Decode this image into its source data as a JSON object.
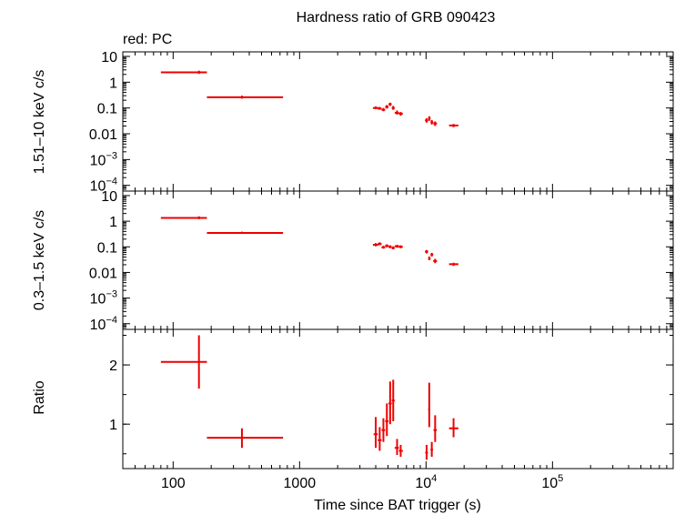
{
  "chart_data": {
    "type": "scatter",
    "title": "Hardness ratio of GRB 090423",
    "subtitle": "red: PC",
    "xlabel": "Time since BAT trigger (s)",
    "xscale": "log",
    "xlim": [
      40,
      900000
    ],
    "x_ticks": [
      {
        "value": 100,
        "label": "100"
      },
      {
        "value": 1000,
        "label": "1000"
      },
      {
        "value": 10000,
        "label": "10",
        "sup": "4"
      },
      {
        "value": 100000,
        "label": "10",
        "sup": "5"
      }
    ],
    "series_color": "#ee0000",
    "panels": [
      {
        "name": "hard-band",
        "ylabel": "1.51–10 keV c/s",
        "yscale": "log",
        "ylim": [
          6e-05,
          15
        ],
        "y_ticks": [
          {
            "value": 10,
            "label": "10"
          },
          {
            "value": 1,
            "label": "1"
          },
          {
            "value": 0.1,
            "label": "0.1"
          },
          {
            "value": 0.01,
            "label": "0.01"
          },
          {
            "value": 0.001,
            "label": "10",
            "sup": "−3"
          },
          {
            "value": 0.0001,
            "label": "10",
            "sup": "−4"
          }
        ],
        "points": [
          {
            "x": 160,
            "xlo": 80,
            "xhi": 185,
            "y": 2.4,
            "ylo": 2.1,
            "yhi": 2.8
          },
          {
            "x": 350,
            "xlo": 185,
            "xhi": 740,
            "y": 0.26,
            "ylo": 0.23,
            "yhi": 0.3
          },
          {
            "x": 4000,
            "xlo": 3800,
            "xhi": 4200,
            "y": 0.1,
            "ylo": 0.09,
            "yhi": 0.115
          },
          {
            "x": 4300,
            "xlo": 4150,
            "xhi": 4450,
            "y": 0.095,
            "ylo": 0.085,
            "yhi": 0.11
          },
          {
            "x": 4600,
            "xlo": 4450,
            "xhi": 4750,
            "y": 0.085,
            "ylo": 0.075,
            "yhi": 0.1
          },
          {
            "x": 4900,
            "xlo": 4750,
            "xhi": 5050,
            "y": 0.11,
            "ylo": 0.095,
            "yhi": 0.13
          },
          {
            "x": 5200,
            "xlo": 5050,
            "xhi": 5350,
            "y": 0.14,
            "ylo": 0.12,
            "yhi": 0.16
          },
          {
            "x": 5500,
            "xlo": 5350,
            "xhi": 5650,
            "y": 0.1,
            "ylo": 0.085,
            "yhi": 0.12
          },
          {
            "x": 5900,
            "xlo": 5650,
            "xhi": 6100,
            "y": 0.065,
            "ylo": 0.055,
            "yhi": 0.08
          },
          {
            "x": 6300,
            "xlo": 6100,
            "xhi": 6550,
            "y": 0.06,
            "ylo": 0.05,
            "yhi": 0.07
          },
          {
            "x": 10100,
            "xlo": 9800,
            "xhi": 10400,
            "y": 0.033,
            "ylo": 0.027,
            "yhi": 0.04
          },
          {
            "x": 10600,
            "xlo": 10400,
            "xhi": 10850,
            "y": 0.04,
            "ylo": 0.032,
            "yhi": 0.048
          },
          {
            "x": 11100,
            "xlo": 10850,
            "xhi": 11400,
            "y": 0.028,
            "ylo": 0.023,
            "yhi": 0.034
          },
          {
            "x": 11800,
            "xlo": 11400,
            "xhi": 12200,
            "y": 0.025,
            "ylo": 0.02,
            "yhi": 0.03
          },
          {
            "x": 16500,
            "xlo": 15200,
            "xhi": 18000,
            "y": 0.021,
            "ylo": 0.018,
            "yhi": 0.024
          }
        ]
      },
      {
        "name": "soft-band",
        "ylabel": "0.3–1.5 keV c/s",
        "yscale": "log",
        "ylim": [
          6e-05,
          15
        ],
        "y_ticks": [
          {
            "value": 10,
            "label": "10"
          },
          {
            "value": 1,
            "label": "1"
          },
          {
            "value": 0.1,
            "label": "0.1"
          },
          {
            "value": 0.01,
            "label": "0.01"
          },
          {
            "value": 0.001,
            "label": "10",
            "sup": "−3"
          },
          {
            "value": 0.0001,
            "label": "10",
            "sup": "−4"
          }
        ],
        "points": [
          {
            "x": 160,
            "xlo": 80,
            "xhi": 185,
            "y": 1.35,
            "ylo": 1.2,
            "yhi": 1.55
          },
          {
            "x": 350,
            "xlo": 185,
            "xhi": 740,
            "y": 0.35,
            "ylo": 0.32,
            "yhi": 0.39
          },
          {
            "x": 4000,
            "xlo": 3800,
            "xhi": 4200,
            "y": 0.12,
            "ylo": 0.105,
            "yhi": 0.14
          },
          {
            "x": 4300,
            "xlo": 4150,
            "xhi": 4450,
            "y": 0.13,
            "ylo": 0.115,
            "yhi": 0.15
          },
          {
            "x": 4600,
            "xlo": 4450,
            "xhi": 4750,
            "y": 0.095,
            "ylo": 0.085,
            "yhi": 0.11
          },
          {
            "x": 4900,
            "xlo": 4750,
            "xhi": 5050,
            "y": 0.11,
            "ylo": 0.095,
            "yhi": 0.125
          },
          {
            "x": 5200,
            "xlo": 5050,
            "xhi": 5350,
            "y": 0.1,
            "ylo": 0.088,
            "yhi": 0.115
          },
          {
            "x": 5500,
            "xlo": 5350,
            "xhi": 5650,
            "y": 0.09,
            "ylo": 0.08,
            "yhi": 0.105
          },
          {
            "x": 5900,
            "xlo": 5650,
            "xhi": 6100,
            "y": 0.105,
            "ylo": 0.092,
            "yhi": 0.12
          },
          {
            "x": 6300,
            "xlo": 6100,
            "xhi": 6550,
            "y": 0.1,
            "ylo": 0.088,
            "yhi": 0.115
          },
          {
            "x": 10100,
            "xlo": 9800,
            "xhi": 10400,
            "y": 0.065,
            "ylo": 0.055,
            "yhi": 0.075
          },
          {
            "x": 10600,
            "xlo": 10400,
            "xhi": 10850,
            "y": 0.035,
            "ylo": 0.03,
            "yhi": 0.042
          },
          {
            "x": 11100,
            "xlo": 10850,
            "xhi": 11400,
            "y": 0.05,
            "ylo": 0.042,
            "yhi": 0.058
          },
          {
            "x": 11800,
            "xlo": 11400,
            "xhi": 12200,
            "y": 0.028,
            "ylo": 0.023,
            "yhi": 0.034
          },
          {
            "x": 16500,
            "xlo": 15200,
            "xhi": 18000,
            "y": 0.021,
            "ylo": 0.018,
            "yhi": 0.024
          }
        ]
      },
      {
        "name": "ratio",
        "ylabel": "Ratio",
        "yscale": "linear",
        "ylim": [
          0.25,
          2.6
        ],
        "y_ticks": [
          {
            "value": 1,
            "label": "1"
          },
          {
            "value": 2,
            "label": "2"
          }
        ],
        "points": [
          {
            "x": 160,
            "xlo": 80,
            "xhi": 185,
            "y": 2.05,
            "ylo": 1.6,
            "yhi": 2.5
          },
          {
            "x": 350,
            "xlo": 185,
            "xhi": 740,
            "y": 0.77,
            "ylo": 0.6,
            "yhi": 0.93
          },
          {
            "x": 4000,
            "xlo": 3850,
            "xhi": 4150,
            "y": 0.83,
            "ylo": 0.6,
            "yhi": 1.12
          },
          {
            "x": 4300,
            "xlo": 4150,
            "xhi": 4450,
            "y": 0.73,
            "ylo": 0.55,
            "yhi": 0.95
          },
          {
            "x": 4600,
            "xlo": 4450,
            "xhi": 4750,
            "y": 0.9,
            "ylo": 0.7,
            "yhi": 1.1
          },
          {
            "x": 4900,
            "xlo": 4750,
            "xhi": 5050,
            "y": 1.05,
            "ylo": 0.8,
            "yhi": 1.35
          },
          {
            "x": 5200,
            "xlo": 5050,
            "xhi": 5350,
            "y": 1.35,
            "ylo": 1.0,
            "yhi": 1.72
          },
          {
            "x": 5500,
            "xlo": 5350,
            "xhi": 5650,
            "y": 1.4,
            "ylo": 1.05,
            "yhi": 1.75
          },
          {
            "x": 5900,
            "xlo": 5650,
            "xhi": 6100,
            "y": 0.6,
            "ylo": 0.48,
            "yhi": 0.75
          },
          {
            "x": 6300,
            "xlo": 6100,
            "xhi": 6550,
            "y": 0.55,
            "ylo": 0.45,
            "yhi": 0.65
          },
          {
            "x": 10100,
            "xlo": 9850,
            "xhi": 10350,
            "y": 0.52,
            "ylo": 0.4,
            "yhi": 0.65
          },
          {
            "x": 10600,
            "xlo": 10400,
            "xhi": 10800,
            "y": 1.25,
            "ylo": 0.95,
            "yhi": 1.7
          },
          {
            "x": 11100,
            "xlo": 10850,
            "xhi": 11350,
            "y": 0.57,
            "ylo": 0.45,
            "yhi": 0.7
          },
          {
            "x": 11800,
            "xlo": 11450,
            "xhi": 12150,
            "y": 0.9,
            "ylo": 0.7,
            "yhi": 1.15
          },
          {
            "x": 16500,
            "xlo": 15200,
            "xhi": 18000,
            "y": 0.93,
            "ylo": 0.78,
            "yhi": 1.1
          }
        ]
      }
    ]
  }
}
